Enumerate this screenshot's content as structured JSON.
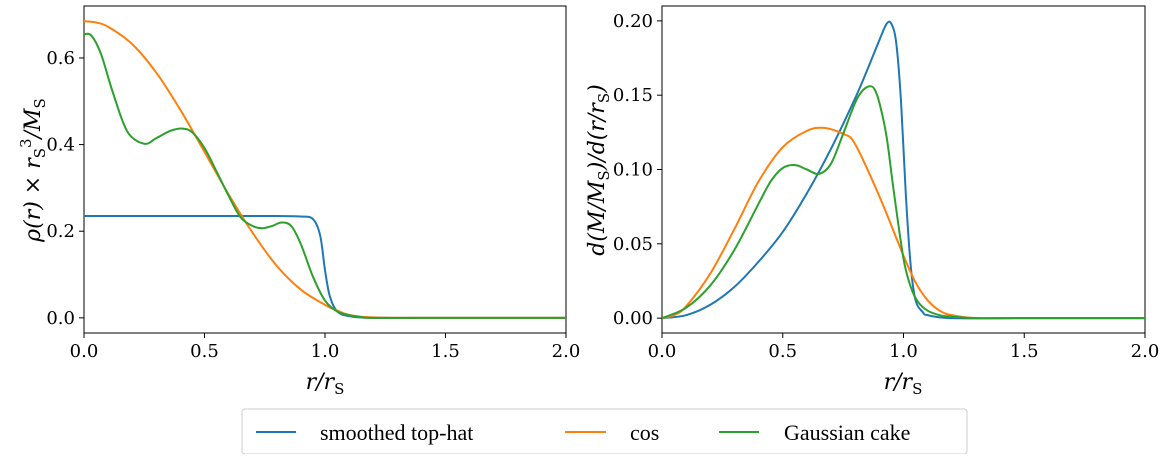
{
  "colors": {
    "smoothed_top_hat": "#1f77b4",
    "cos": "#ff7f0e",
    "gaussian_cake": "#2ca02c"
  },
  "legend": {
    "placement": "bottom-center",
    "entries": [
      "smoothed top-hat",
      "cos",
      "Gaussian cake"
    ]
  },
  "chart_data": [
    {
      "type": "line",
      "xlabel": "r/r_S",
      "ylabel": "ρ(r) × r_S^3 / M_S",
      "xlim": [
        0.0,
        2.0
      ],
      "ylim": [
        -0.035,
        0.72
      ],
      "xticks": [
        "0.0",
        "0.5",
        "1.0",
        "1.5",
        "2.0"
      ],
      "yticks": [
        "0.0",
        "0.2",
        "0.4",
        "0.6"
      ],
      "grid": false,
      "series": [
        {
          "name": "smoothed top-hat",
          "x": [
            0.0,
            0.2,
            0.4,
            0.6,
            0.8,
            0.9,
            0.95,
            0.98,
            1.0,
            1.02,
            1.05,
            1.1,
            1.2,
            1.5,
            2.0
          ],
          "y": [
            0.235,
            0.235,
            0.235,
            0.235,
            0.235,
            0.234,
            0.228,
            0.19,
            0.11,
            0.05,
            0.015,
            0.004,
            0.0,
            0.0,
            0.0
          ]
        },
        {
          "name": "cos",
          "x": [
            0.0,
            0.05,
            0.1,
            0.2,
            0.3,
            0.4,
            0.5,
            0.6,
            0.7,
            0.8,
            0.9,
            1.0,
            1.05,
            1.1,
            1.2,
            1.5,
            2.0
          ],
          "y": [
            0.685,
            0.682,
            0.672,
            0.632,
            0.566,
            0.48,
            0.383,
            0.285,
            0.196,
            0.12,
            0.065,
            0.03,
            0.017,
            0.007,
            0.001,
            0.0,
            0.0
          ]
        },
        {
          "name": "Gaussian cake",
          "x": [
            0.0,
            0.03,
            0.07,
            0.12,
            0.18,
            0.25,
            0.3,
            0.36,
            0.41,
            0.45,
            0.5,
            0.55,
            0.6,
            0.65,
            0.7,
            0.74,
            0.78,
            0.82,
            0.86,
            0.9,
            0.95,
            1.0,
            1.05,
            1.1,
            1.15,
            1.2,
            1.5,
            2.0
          ],
          "y": [
            0.655,
            0.652,
            0.61,
            0.52,
            0.43,
            0.402,
            0.415,
            0.432,
            0.437,
            0.428,
            0.392,
            0.338,
            0.282,
            0.232,
            0.212,
            0.207,
            0.212,
            0.22,
            0.212,
            0.17,
            0.095,
            0.04,
            0.015,
            0.006,
            0.002,
            0.0,
            0.0,
            0.0
          ]
        }
      ]
    },
    {
      "type": "line",
      "xlabel": "r/r_S",
      "ylabel": "d(M/M_S) / d(r/r_S)",
      "xlim": [
        0.0,
        2.0
      ],
      "ylim": [
        -0.01,
        0.21
      ],
      "xticks": [
        "0.0",
        "0.5",
        "1.0",
        "1.5",
        "2.0"
      ],
      "yticks": [
        "0.00",
        "0.05",
        "0.10",
        "0.15",
        "0.20"
      ],
      "grid": false,
      "series": [
        {
          "name": "smoothed top-hat",
          "x": [
            0.0,
            0.1,
            0.2,
            0.3,
            0.4,
            0.5,
            0.6,
            0.7,
            0.8,
            0.85,
            0.9,
            0.93,
            0.95,
            0.97,
            0.99,
            1.01,
            1.03,
            1.05,
            1.08,
            1.1,
            1.2,
            1.5,
            2.0
          ],
          "y": [
            0.0,
            0.002,
            0.009,
            0.021,
            0.038,
            0.058,
            0.084,
            0.114,
            0.148,
            0.167,
            0.187,
            0.198,
            0.198,
            0.185,
            0.145,
            0.082,
            0.035,
            0.012,
            0.004,
            0.002,
            0.0,
            0.0,
            0.0
          ]
        },
        {
          "name": "cos",
          "x": [
            0.0,
            0.05,
            0.1,
            0.2,
            0.3,
            0.4,
            0.5,
            0.6,
            0.67,
            0.75,
            0.8,
            0.9,
            1.0,
            1.05,
            1.1,
            1.15,
            1.2,
            1.3,
            1.5,
            2.0
          ],
          "y": [
            0.0,
            0.002,
            0.008,
            0.03,
            0.06,
            0.092,
            0.115,
            0.126,
            0.128,
            0.124,
            0.117,
            0.082,
            0.042,
            0.024,
            0.012,
            0.005,
            0.002,
            0.0,
            0.0,
            0.0
          ]
        },
        {
          "name": "Gaussian cake",
          "x": [
            0.0,
            0.1,
            0.2,
            0.3,
            0.4,
            0.45,
            0.5,
            0.55,
            0.6,
            0.65,
            0.7,
            0.75,
            0.8,
            0.83,
            0.86,
            0.88,
            0.9,
            0.93,
            0.96,
            1.0,
            1.03,
            1.06,
            1.1,
            1.15,
            1.2,
            1.3,
            1.5,
            2.0
          ],
          "y": [
            0.0,
            0.007,
            0.022,
            0.046,
            0.077,
            0.092,
            0.101,
            0.103,
            0.1,
            0.097,
            0.104,
            0.124,
            0.145,
            0.153,
            0.156,
            0.154,
            0.145,
            0.122,
            0.085,
            0.04,
            0.021,
            0.011,
            0.005,
            0.002,
            0.001,
            0.0,
            0.0,
            0.0
          ]
        }
      ]
    }
  ]
}
